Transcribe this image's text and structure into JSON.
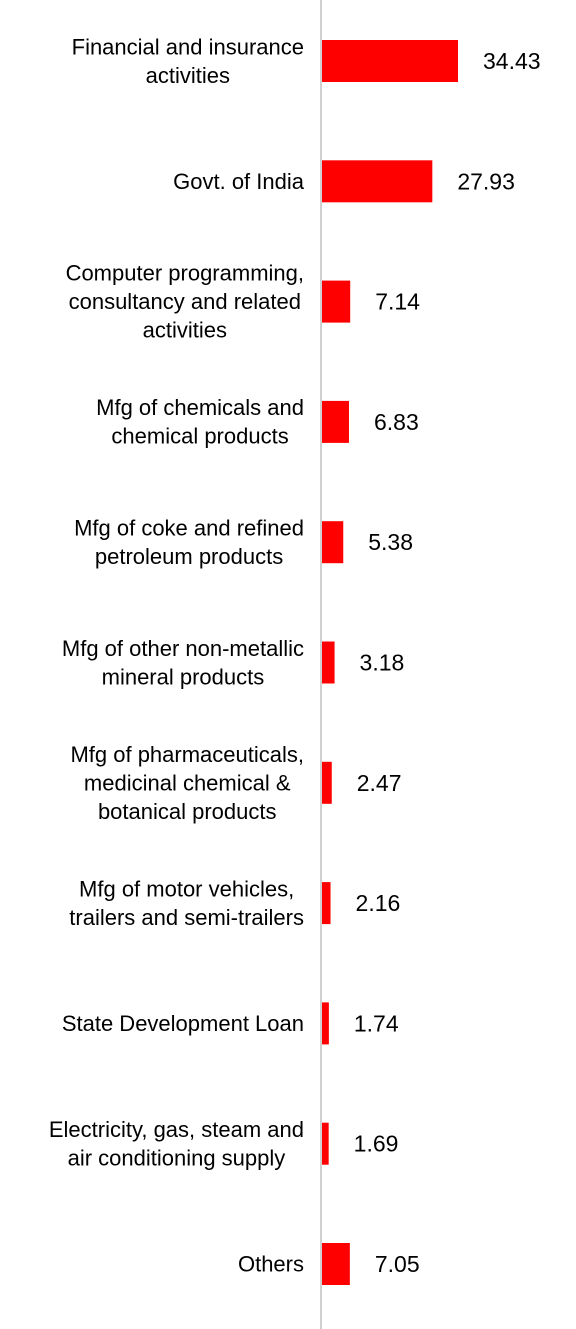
{
  "chart_data": {
    "type": "bar",
    "orientation": "horizontal",
    "categories": [
      "Financial and insurance activities",
      "Govt. of India",
      "Computer programming, consultancy and related activities",
      "Mfg of chemicals and chemical products",
      "Mfg of coke and refined petroleum products",
      "Mfg of other non-metallic mineral products",
      "Mfg of pharmaceuticals, medicinal chemical & botanical products",
      "Mfg of motor vehicles, trailers and semi-trailers",
      "State Development Loan",
      "Electricity, gas, steam and air conditioning supply",
      "Others"
    ],
    "category_label_lines": [
      [
        "Financial and insurance",
        "activities"
      ],
      [
        "Govt. of India"
      ],
      [
        "Computer programming,",
        "consultancy and related",
        "activities"
      ],
      [
        "Mfg of chemicals and",
        "chemical products"
      ],
      [
        "Mfg of coke and refined",
        "petroleum products"
      ],
      [
        "Mfg of other non-metallic",
        "mineral products"
      ],
      [
        "Mfg of pharmaceuticals,",
        "medicinal chemical &",
        "botanical products"
      ],
      [
        "Mfg of motor vehicles,",
        "trailers and semi-trailers"
      ],
      [
        "State Development Loan"
      ],
      [
        "Electricity, gas, steam and",
        "air conditioning supply"
      ],
      [
        "Others"
      ]
    ],
    "values": [
      34.43,
      27.93,
      7.14,
      6.83,
      5.38,
      3.18,
      2.47,
      2.16,
      1.74,
      1.69,
      7.05
    ],
    "value_labels": [
      "34.43",
      "27.93",
      "7.14",
      "6.83",
      "5.38",
      "3.18",
      "2.47",
      "2.16",
      "1.74",
      "1.69",
      "7.05"
    ],
    "bar_color": "#ff0000",
    "axis_color": "#d0d0d0",
    "title": "",
    "xlabel": "",
    "ylabel": "",
    "xlim": [
      0,
      34.43
    ],
    "grid": false,
    "legend": "none"
  }
}
